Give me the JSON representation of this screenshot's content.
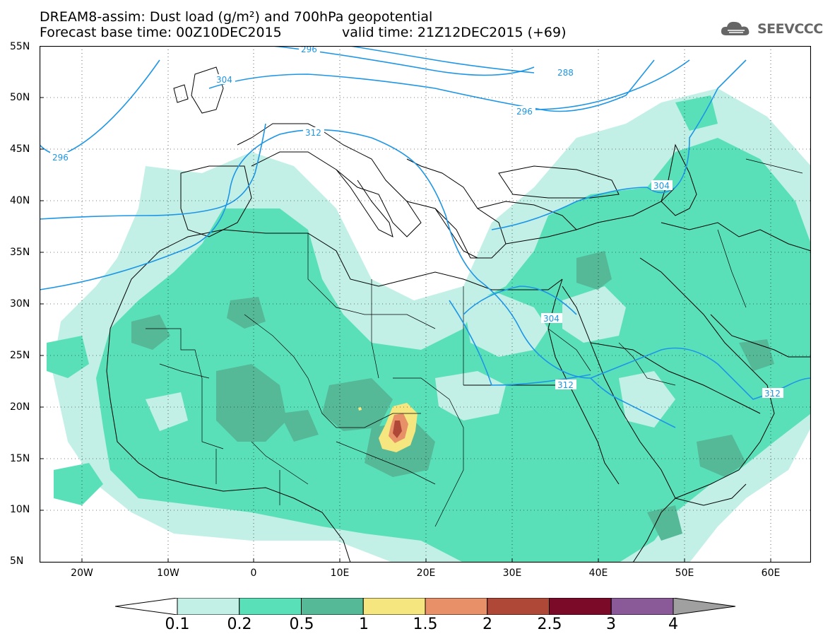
{
  "header": {
    "title_line1": "DREAM8-assim: Dust load (g/m²) and 700hPa geopotential",
    "title_line2": "Forecast base time: 00Z10DEC2015",
    "valid_time": "valid time: 21Z12DEC2015 (+69)",
    "logo_text": "SEEVCCC"
  },
  "map": {
    "lat_labels": [
      "55N",
      "50N",
      "45N",
      "40N",
      "35N",
      "30N",
      "25N",
      "20N",
      "15N",
      "10N",
      "5N"
    ],
    "lon_labels": [
      "20W",
      "10W",
      "0",
      "10E",
      "20E",
      "30E",
      "40E",
      "50E",
      "60E"
    ],
    "contour_labels": [
      "296",
      "288",
      "296",
      "304",
      "312",
      "296",
      "304",
      "304",
      "312",
      "312"
    ],
    "dust_colors": {
      "0.1": "#c2f0e6",
      "0.2": "#5ae0b8",
      "0.5": "#55b896",
      "1": "#f5e680",
      "1.5": "#e89068",
      "2": "#b04838",
      "2.5": "#7a0a28",
      "3": "#8a5a98",
      "4": "#a0a0a0"
    },
    "contour_color": "#1e96e6"
  },
  "colorbar": {
    "labels": [
      "0.1",
      "0.2",
      "0.5",
      "1",
      "1.5",
      "2",
      "2.5",
      "3",
      "4"
    ],
    "colors": [
      "#c2f0e6",
      "#5ae0b8",
      "#55b896",
      "#f5e680",
      "#e89068",
      "#b04838",
      "#7a0a28",
      "#8a5a98"
    ]
  }
}
